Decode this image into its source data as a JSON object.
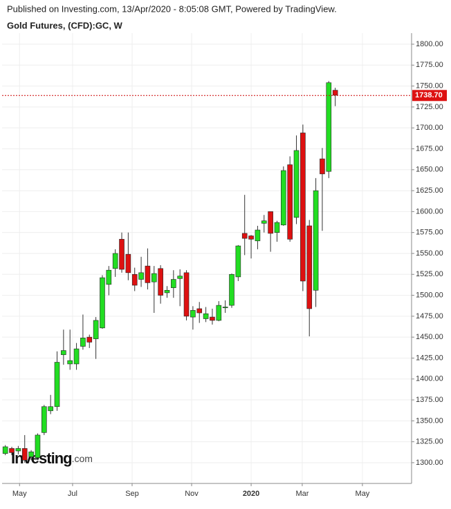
{
  "header": {
    "published": "Published on Investing.com, 13/Apr/2020 - 8:05:08 GMT, Powered by TradingView.",
    "symbol": "Gold Futures, (CFD):GC, W"
  },
  "chart_data": {
    "type": "candlestick",
    "categories": [
      null,
      null,
      null,
      null,
      null,
      null,
      null,
      null,
      null,
      null,
      null,
      null,
      null,
      null,
      null,
      null,
      null,
      null,
      null,
      null,
      null,
      null,
      null,
      null,
      null,
      null,
      null,
      null,
      null,
      null,
      null,
      null,
      null,
      null,
      null,
      null,
      null,
      null,
      null,
      null,
      null,
      null,
      null,
      null,
      null,
      null,
      null,
      null,
      null,
      null,
      null,
      null
    ],
    "open": [
      1311,
      1317,
      1314,
      1317,
      1307,
      1306,
      1336,
      1362,
      1367,
      1429,
      1418,
      1418,
      1439,
      1450,
      1448,
      1461,
      1513,
      1532,
      1567,
      1549,
      1525,
      1519,
      1535,
      1516,
      1532,
      1503,
      1509,
      1520,
      1527,
      1474,
      1484,
      1472,
      1474,
      1470,
      1485,
      1488,
      1522,
      1574,
      1571,
      1565,
      1586,
      1600,
      1575,
      1584,
      1656,
      1593,
      1694,
      1583,
      1506,
      1663,
      1648,
      1745
    ],
    "high": [
      1321,
      1319,
      1320,
      1333,
      1315,
      1335,
      1369,
      1381,
      1433,
      1459,
      1459,
      1443,
      1477,
      1453,
      1474,
      1524,
      1535,
      1555,
      1575,
      1575,
      1533,
      1546,
      1556,
      1535,
      1536,
      1511,
      1530,
      1531,
      1530,
      1487,
      1492,
      1486,
      1484,
      1493,
      1494,
      1526,
      1560,
      1620,
      1572,
      1583,
      1596,
      1600,
      1589,
      1654,
      1666,
      1691,
      1704,
      1590,
      1640,
      1676,
      1756,
      1748
    ],
    "low": [
      1309,
      1309,
      1310,
      1300,
      1303,
      1303,
      1333,
      1358,
      1362,
      1417,
      1411,
      1411,
      1435,
      1437,
      1424,
      1460,
      1500,
      1522,
      1527,
      1518,
      1505,
      1510,
      1507,
      1479,
      1490,
      1497,
      1497,
      1487,
      1470,
      1459,
      1467,
      1468,
      1465,
      1469,
      1479,
      1485,
      1517,
      1548,
      1544,
      1555,
      1575,
      1552,
      1564,
      1583,
      1564,
      1585,
      1505,
      1451,
      1486,
      1577,
      1640,
      1726
    ],
    "close": [
      1319,
      1312,
      1317,
      1303,
      1313,
      1333,
      1367,
      1367,
      1420,
      1434,
      1422,
      1436,
      1449,
      1444,
      1470,
      1521,
      1530,
      1550,
      1531,
      1527,
      1512,
      1527,
      1515,
      1526,
      1500,
      1506,
      1519,
      1523,
      1475,
      1482,
      1479,
      1478,
      1470,
      1488,
      1486,
      1525,
      1559,
      1568,
      1567,
      1578,
      1589,
      1574,
      1587,
      1649,
      1567,
      1673,
      1517,
      1484,
      1625,
      1645,
      1754,
      1739
    ],
    "up_color": "#22dd22",
    "down_color": "#dd1111",
    "xlim": [
      -0.5,
      62.8
    ],
    "xticks": [
      {
        "value": 2.2,
        "label": "May"
      },
      {
        "value": 10.4,
        "label": "Jul"
      },
      {
        "value": 19.6,
        "label": "Sep"
      },
      {
        "value": 28.8,
        "label": "Nov"
      },
      {
        "value": 38,
        "label": "2020"
      },
      {
        "value": 45.9,
        "label": "Mar"
      },
      {
        "value": 55.2,
        "label": "May"
      }
    ],
    "ylim": [
      1275.2,
      1813.2
    ],
    "yticks": [
      {
        "value": 1300,
        "label": "1300.00"
      },
      {
        "value": 1325,
        "label": "1325.00"
      },
      {
        "value": 1350,
        "label": "1350.00"
      },
      {
        "value": 1375,
        "label": "1375.00"
      },
      {
        "value": 1400,
        "label": "1400.00"
      },
      {
        "value": 1425,
        "label": "1425.00"
      },
      {
        "value": 1450,
        "label": "1450.00"
      },
      {
        "value": 1475,
        "label": "1475.00"
      },
      {
        "value": 1500,
        "label": "1500.00"
      },
      {
        "value": 1525,
        "label": "1525.00"
      },
      {
        "value": 1550,
        "label": "1550.00"
      },
      {
        "value": 1575,
        "label": "1575.00"
      },
      {
        "value": 1600,
        "label": "1600.00"
      },
      {
        "value": 1625,
        "label": "1625.00"
      },
      {
        "value": 1650,
        "label": "1650.00"
      },
      {
        "value": 1675,
        "label": "1675.00"
      },
      {
        "value": 1700,
        "label": "1700.00"
      },
      {
        "value": 1725,
        "label": "1725.00"
      },
      {
        "value": 1750,
        "label": "1750.00"
      },
      {
        "value": 1775,
        "label": "1775.00"
      },
      {
        "value": 1800,
        "label": "1800.00"
      }
    ],
    "last_price": {
      "value": 1738.7,
      "label": "1738.70"
    },
    "grid": true,
    "watermark": [
      "Investing",
      ".com"
    ]
  }
}
